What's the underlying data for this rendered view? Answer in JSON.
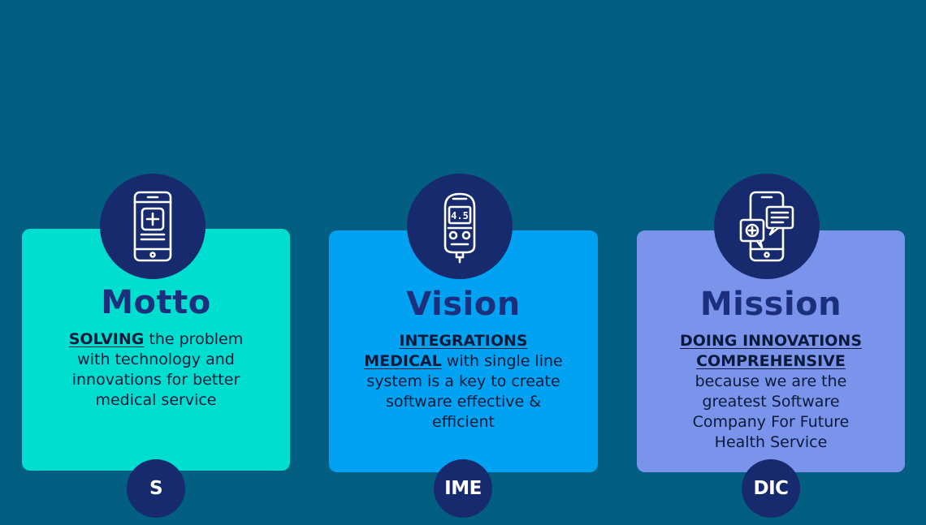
{
  "colors": {
    "background": "#025f81",
    "motto_card": "#00dfcf",
    "vision_card": "#00a2f1",
    "mission_card": "#7b94eb",
    "circle": "#162a6d",
    "title": "#1b2f7c"
  },
  "cards": [
    {
      "icon": "phone-medical-cross-icon",
      "title": "Motto",
      "keyword": "SOLVING",
      "body": " the problem with technology and innovations for better medical service",
      "badge": "S"
    },
    {
      "icon": "glucose-meter-icon",
      "title": "Vision",
      "keyword": "INTEGRATIONS MEDICAL",
      "body": " with single line system is a key to create software effective & efficient",
      "badge": "IME"
    },
    {
      "icon": "phone-telemedicine-chat-icon",
      "title": "Mission",
      "keyword": "DOING INNOVATIONS COMPREHENSIVE",
      "body": " because we are the greatest Software Company For Future Health Service",
      "badge": "DIC"
    }
  ]
}
